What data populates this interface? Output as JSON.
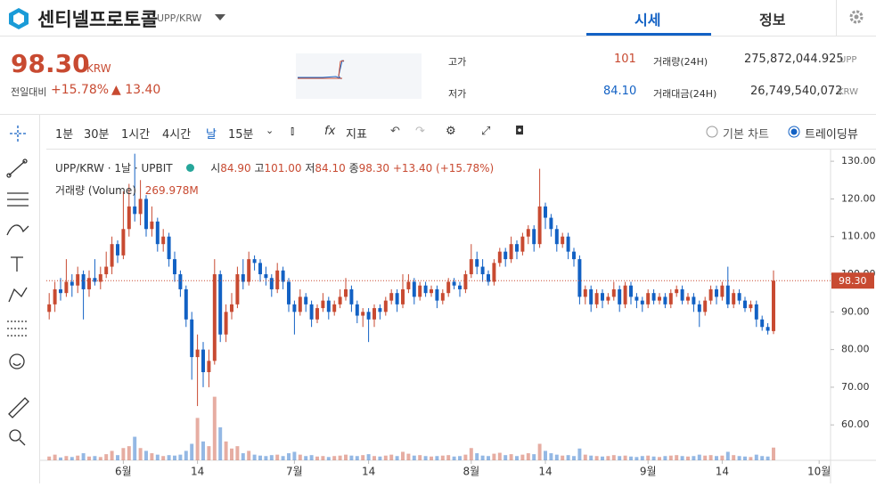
{
  "header": {
    "name": "센티넬프로토콜",
    "pair": "UPP/KRW",
    "tabs": [
      "시세",
      "정보"
    ]
  },
  "ticker": {
    "price": "98.30",
    "currency": "KRW",
    "change_label": "전일대비",
    "change_pct": "+15.78%",
    "change_abs": "▲ 13.40",
    "high_label": "고가",
    "high": "101",
    "low_label": "저가",
    "low": "84.10",
    "volume_label": "거래량(24H)",
    "volume": "275,872,044.925",
    "volume_unit": "UPP",
    "value_label": "거래대금(24H)",
    "value": "26,749,540,072",
    "value_unit": "KRW"
  },
  "toolbar": {
    "intervals": [
      "1분",
      "30분",
      "1시간",
      "4시간",
      "날",
      "15분"
    ],
    "indicators": "지표",
    "chart_modes": [
      "기본 차트",
      "트레이딩뷰"
    ]
  },
  "chart_data": {
    "type": "candlestick",
    "symbol": "UPP/KRW · 1날 · UPBIT",
    "ohlc_prefixes": [
      "시",
      "고",
      "저",
      "종"
    ],
    "last_labels": [
      "84.90",
      "101.00",
      "84.10",
      "98.30"
    ],
    "change_label": "+13.40 (+15.78%)",
    "volume_name": "거래량 (Volume)",
    "volume_label": "269.978M",
    "price_label": "98.30",
    "up_color": "#c84a31",
    "down_color": "#1261c4",
    "ohlc": [
      [
        90,
        95,
        88,
        92
      ],
      [
        92,
        98,
        90,
        96
      ],
      [
        96,
        99,
        93,
        95
      ],
      [
        95,
        104,
        94,
        98
      ],
      [
        98,
        100,
        94,
        97
      ],
      [
        97,
        102,
        95,
        100
      ],
      [
        100,
        101,
        88,
        96
      ],
      [
        96,
        101,
        94,
        99
      ],
      [
        99,
        104,
        97,
        98
      ],
      [
        98,
        102,
        96,
        100
      ],
      [
        100,
        106,
        99,
        102
      ],
      [
        102,
        110,
        100,
        108
      ],
      [
        108,
        109,
        103,
        105
      ],
      [
        105,
        122,
        104,
        112
      ],
      [
        112,
        124,
        110,
        118
      ],
      [
        118,
        132,
        114,
        116
      ],
      [
        116,
        125,
        113,
        120
      ],
      [
        120,
        121,
        110,
        112
      ],
      [
        112,
        118,
        110,
        114
      ],
      [
        114,
        115,
        106,
        108
      ],
      [
        108,
        112,
        106,
        110
      ],
      [
        110,
        111,
        102,
        104
      ],
      [
        104,
        106,
        98,
        100
      ],
      [
        100,
        101,
        94,
        96
      ],
      [
        96,
        97,
        86,
        88
      ],
      [
        88,
        90,
        72,
        78
      ],
      [
        78,
        84,
        65,
        80
      ],
      [
        80,
        82,
        70,
        74
      ],
      [
        74,
        80,
        70,
        77
      ],
      [
        77,
        104,
        76,
        100
      ],
      [
        100,
        101,
        82,
        84
      ],
      [
        84,
        92,
        82,
        90
      ],
      [
        90,
        95,
        88,
        92
      ],
      [
        92,
        102,
        91,
        100
      ],
      [
        100,
        104,
        96,
        98
      ],
      [
        98,
        106,
        97,
        104
      ],
      [
        104,
        105,
        101,
        103
      ],
      [
        103,
        104,
        98,
        100
      ],
      [
        100,
        102,
        97,
        99
      ],
      [
        99,
        100,
        94,
        96
      ],
      [
        96,
        103,
        95,
        101
      ],
      [
        101,
        102,
        96,
        98
      ],
      [
        98,
        99,
        90,
        92
      ],
      [
        92,
        93,
        84,
        90
      ],
      [
        90,
        96,
        89,
        94
      ],
      [
        94,
        95,
        90,
        92
      ],
      [
        92,
        93,
        86,
        88
      ],
      [
        88,
        92,
        87,
        91
      ],
      [
        91,
        95,
        90,
        93
      ],
      [
        93,
        94,
        88,
        90
      ],
      [
        90,
        93,
        89,
        92
      ],
      [
        92,
        96,
        91,
        94
      ],
      [
        94,
        99,
        93,
        96
      ],
      [
        96,
        97,
        90,
        92
      ],
      [
        92,
        93,
        87,
        89
      ],
      [
        89,
        91,
        86,
        90
      ],
      [
        90,
        91,
        82,
        88
      ],
      [
        88,
        92,
        86,
        91
      ],
      [
        91,
        92,
        88,
        90
      ],
      [
        90,
        94,
        89,
        93
      ],
      [
        93,
        96,
        92,
        95
      ],
      [
        95,
        96,
        90,
        92
      ],
      [
        92,
        100,
        91,
        96
      ],
      [
        96,
        100,
        95,
        98
      ],
      [
        98,
        99,
        92,
        94
      ],
      [
        94,
        98,
        93,
        97
      ],
      [
        97,
        98,
        94,
        95
      ],
      [
        95,
        97,
        94,
        96
      ],
      [
        96,
        97,
        91,
        93
      ],
      [
        93,
        96,
        92,
        95
      ],
      [
        95,
        99,
        94,
        98
      ],
      [
        98,
        99,
        96,
        97
      ],
      [
        97,
        98,
        94,
        96
      ],
      [
        96,
        101,
        95,
        100
      ],
      [
        100,
        108,
        99,
        104
      ],
      [
        104,
        106,
        100,
        102
      ],
      [
        102,
        104,
        98,
        100
      ],
      [
        100,
        101,
        97,
        98
      ],
      [
        98,
        104,
        97,
        103
      ],
      [
        103,
        107,
        102,
        106
      ],
      [
        106,
        107,
        102,
        104
      ],
      [
        104,
        110,
        103,
        108
      ],
      [
        108,
        109,
        104,
        106
      ],
      [
        106,
        111,
        105,
        110
      ],
      [
        110,
        113,
        108,
        112
      ],
      [
        112,
        113,
        106,
        108
      ],
      [
        108,
        128,
        107,
        118
      ],
      [
        118,
        119,
        112,
        115
      ],
      [
        115,
        116,
        110,
        112
      ],
      [
        112,
        113,
        106,
        108
      ],
      [
        108,
        111,
        107,
        110
      ],
      [
        110,
        111,
        104,
        106
      ],
      [
        106,
        107,
        102,
        104
      ],
      [
        104,
        105,
        92,
        94
      ],
      [
        94,
        97,
        92,
        96
      ],
      [
        96,
        97,
        90,
        92
      ],
      [
        92,
        96,
        91,
        95
      ],
      [
        95,
        96,
        91,
        93
      ],
      [
        93,
        95,
        92,
        94
      ],
      [
        94,
        98,
        93,
        96
      ],
      [
        96,
        97,
        90,
        92
      ],
      [
        92,
        98,
        91,
        97
      ],
      [
        97,
        98,
        92,
        94
      ],
      [
        94,
        95,
        91,
        93
      ],
      [
        93,
        94,
        90,
        92
      ],
      [
        92,
        96,
        91,
        95
      ],
      [
        95,
        96,
        92,
        93
      ],
      [
        93,
        95,
        92,
        94
      ],
      [
        94,
        95,
        91,
        92
      ],
      [
        92,
        96,
        91,
        95
      ],
      [
        95,
        97,
        94,
        96
      ],
      [
        96,
        97,
        92,
        93
      ],
      [
        93,
        95,
        92,
        94
      ],
      [
        94,
        95,
        90,
        92
      ],
      [
        92,
        93,
        86,
        90
      ],
      [
        90,
        94,
        89,
        93
      ],
      [
        93,
        97,
        92,
        96
      ],
      [
        96,
        97,
        92,
        94
      ],
      [
        94,
        98,
        93,
        97
      ],
      [
        97,
        102,
        91,
        92
      ],
      [
        92,
        96,
        91,
        95
      ],
      [
        95,
        96,
        92,
        93
      ],
      [
        93,
        94,
        90,
        91
      ],
      [
        91,
        93,
        90,
        92
      ],
      [
        92,
        93,
        86,
        88
      ],
      [
        88,
        89,
        85,
        86
      ],
      [
        86,
        87,
        84,
        85
      ],
      [
        84.9,
        101,
        84.1,
        98.3
      ]
    ],
    "volume": [
      80,
      120,
      60,
      90,
      70,
      100,
      150,
      80,
      90,
      70,
      130,
      200,
      110,
      260,
      300,
      500,
      260,
      200,
      150,
      120,
      90,
      110,
      100,
      120,
      200,
      350,
      900,
      400,
      300,
      1350,
      700,
      400,
      250,
      300,
      150,
      200,
      120,
      100,
      90,
      110,
      120,
      90,
      150,
      180,
      120,
      90,
      110,
      80,
      90,
      70,
      90,
      100,
      120,
      100,
      90,
      110,
      130,
      90,
      80,
      100,
      120,
      90,
      180,
      140,
      100,
      110,
      90,
      80,
      90,
      100,
      110,
      80,
      90,
      120,
      260,
      150,
      100,
      90,
      140,
      160,
      110,
      130,
      90,
      120,
      150,
      130,
      350,
      200,
      150,
      120,
      100,
      110,
      90,
      250,
      120,
      100,
      90,
      80,
      90,
      110,
      90,
      100,
      80,
      70,
      90,
      100,
      80,
      70,
      90,
      100,
      110,
      90,
      80,
      90,
      120,
      100,
      110,
      90,
      100,
      180,
      110,
      90,
      80,
      70,
      120,
      90,
      80,
      269.978
    ],
    "volume_lim": [
      0,
      6600
    ],
    "ylim": [
      50.6,
      133.1
    ],
    "yticks": [
      {
        "value": 60,
        "label": "60.00"
      },
      {
        "value": 70,
        "label": "70.00"
      },
      {
        "value": 80,
        "label": "80.00"
      },
      {
        "value": 90,
        "label": "90.00"
      },
      {
        "value": 100,
        "label": "100.00"
      },
      {
        "value": 110,
        "label": "110.00"
      },
      {
        "value": 120,
        "label": "120.00"
      },
      {
        "value": 130,
        "label": "130.00"
      }
    ],
    "xlim": [
      -0.5,
      137
    ],
    "xticks": [
      {
        "value": 13,
        "label": "6월"
      },
      {
        "value": 26,
        "label": "14"
      },
      {
        "value": 43,
        "label": "7월"
      },
      {
        "value": 56,
        "label": "14"
      },
      {
        "value": 74,
        "label": "8월"
      },
      {
        "value": 87,
        "label": "14"
      },
      {
        "value": 105,
        "label": "9월"
      },
      {
        "value": 118,
        "label": "14"
      },
      {
        "value": 135,
        "label": "10월"
      }
    ]
  }
}
